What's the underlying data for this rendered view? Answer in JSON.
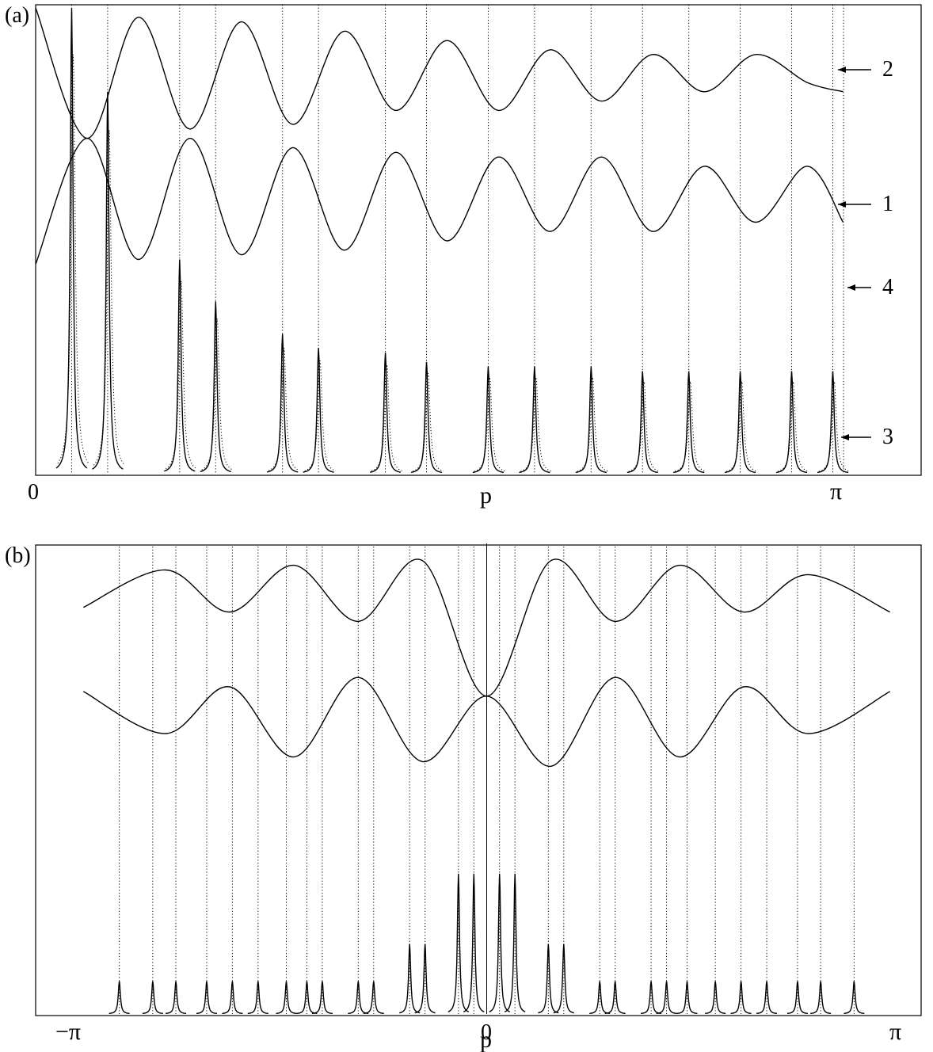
{
  "chart_data": [
    {
      "type": "line",
      "panel_label": "(a)",
      "xlabel": "p",
      "x_tick_labels": [
        "0",
        "π"
      ],
      "xlim": [
        0,
        3.14159
      ],
      "curve_labels": [
        "2",
        "1",
        "4",
        "3"
      ],
      "description_of_series": "curves 1 and 2: oscillating solid lines; 3: peaks; 4: dotted vertical lines",
      "series": [
        {
          "name": "2",
          "style": "solid",
          "x": [
            0,
            0.2,
            0.4,
            0.6,
            0.8,
            1.0,
            1.2,
            1.4,
            1.6,
            1.8,
            2.0,
            2.2,
            2.4,
            2.6,
            2.8,
            3.0,
            3.14
          ],
          "values": [
            1.0,
            0.72,
            0.98,
            0.74,
            0.97,
            0.75,
            0.95,
            0.78,
            0.93,
            0.78,
            0.91,
            0.8,
            0.9,
            0.82,
            0.9,
            0.84,
            0.82
          ]
        },
        {
          "name": "1",
          "style": "solid",
          "x": [
            0,
            0.2,
            0.4,
            0.6,
            0.8,
            1.0,
            1.2,
            1.4,
            1.6,
            1.8,
            2.0,
            2.2,
            2.4,
            2.6,
            2.8,
            3.0,
            3.14
          ],
          "values": [
            0.45,
            0.72,
            0.46,
            0.72,
            0.47,
            0.7,
            0.48,
            0.69,
            0.5,
            0.68,
            0.52,
            0.68,
            0.52,
            0.66,
            0.54,
            0.66,
            0.54
          ]
        }
      ],
      "peak_positions": [
        0.14,
        0.28,
        0.56,
        0.7,
        0.96,
        1.1,
        1.36,
        1.52,
        1.76,
        1.94,
        2.16,
        2.36,
        2.54,
        2.74,
        2.94,
        3.1
      ],
      "peak_heights": [
        1.0,
        0.82,
        0.46,
        0.37,
        0.3,
        0.27,
        0.26,
        0.24,
        0.23,
        0.23,
        0.23,
        0.22,
        0.22,
        0.22,
        0.22,
        0.22
      ],
      "ylim": [
        0,
        1
      ]
    },
    {
      "type": "line",
      "panel_label": "(b)",
      "xlabel": "p",
      "x_tick_labels": [
        "−π",
        "0",
        "π"
      ],
      "xlim": [
        -3.14159,
        3.14159
      ],
      "ylim": [
        0,
        1
      ],
      "series": [
        {
          "style": "solid",
          "x": [
            -3.14,
            -2.5,
            -2.0,
            -1.5,
            -1.0,
            -0.5,
            0.0,
            0.5,
            1.0,
            1.5,
            2.0,
            2.5,
            3.14
          ],
          "values": [
            0.87,
            0.95,
            0.86,
            0.96,
            0.84,
            0.97,
            0.68,
            0.97,
            0.84,
            0.96,
            0.86,
            0.94,
            0.86
          ]
        },
        {
          "style": "solid",
          "x": [
            -3.14,
            -2.5,
            -2.0,
            -1.5,
            -1.0,
            -0.5,
            0.0,
            0.5,
            1.0,
            1.5,
            2.0,
            2.5,
            3.14
          ],
          "values": [
            0.69,
            0.6,
            0.7,
            0.55,
            0.72,
            0.54,
            0.68,
            0.53,
            0.72,
            0.55,
            0.7,
            0.6,
            0.69
          ]
        }
      ]
    }
  ],
  "annotations": {
    "panel_a": "(a)",
    "panel_b": "(b)",
    "arrow_labels": [
      "2",
      "1",
      "4",
      "3"
    ],
    "x_axis_title": "p",
    "a_tick_left": "0",
    "a_tick_right": "π",
    "b_tick_left": "−π",
    "b_tick_mid": "0",
    "b_tick_right": "π"
  }
}
